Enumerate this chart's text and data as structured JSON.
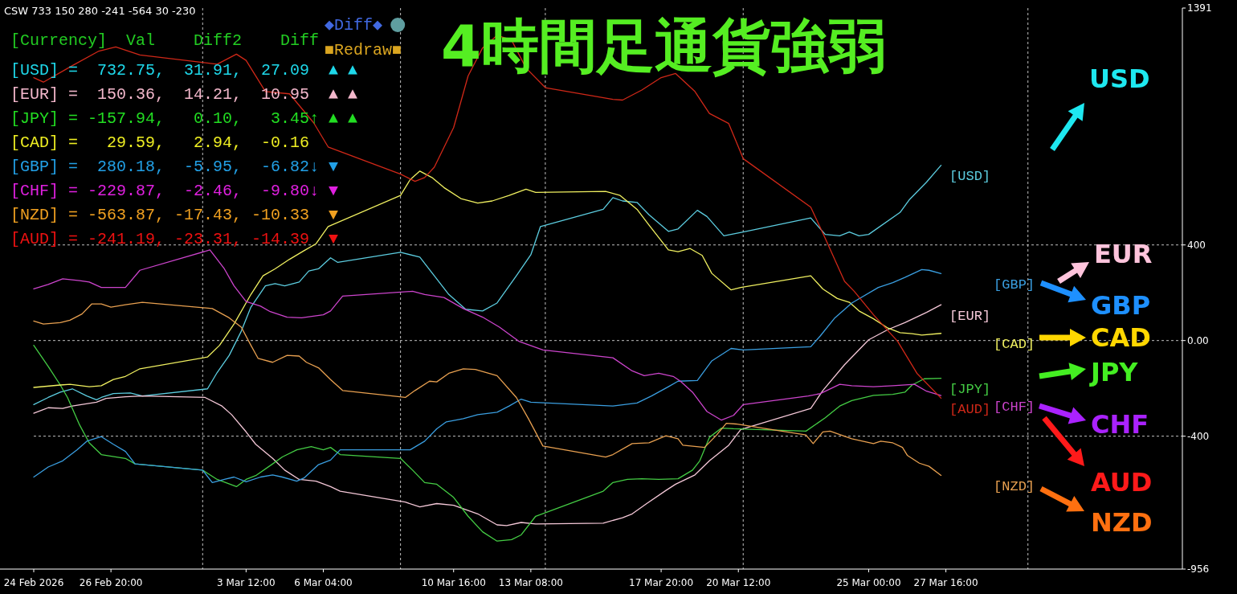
{
  "chart_data": {
    "type": "line",
    "title": "4時間足通貨強弱",
    "xlim": [
      "2026-02-24T04:00",
      "2026-04-04T20:00"
    ],
    "xticks": [
      {
        "value": "2026-02-24T04:00",
        "label": "24 Feb 2026"
      },
      {
        "value": "2026-02-26T20:00",
        "label": "26 Feb 20:00"
      },
      {
        "value": "2026-03-03T12:00",
        "label": "3 Mar 12:00"
      },
      {
        "value": "2026-03-06T04:00",
        "label": "6 Mar 04:00"
      },
      {
        "value": "2026-03-10T16:00",
        "label": "10 Mar 16:00"
      },
      {
        "value": "2026-03-13T08:00",
        "label": "13 Mar 08:00"
      },
      {
        "value": "2026-03-17T20:00",
        "label": "17 Mar 20:00"
      },
      {
        "value": "2026-03-20T12:00",
        "label": "20 Mar 12:00"
      },
      {
        "value": "2026-03-25T00:00",
        "label": "25 Mar 00:00"
      },
      {
        "value": "2026-03-27T16:00",
        "label": "27 Mar 16:00"
      }
    ],
    "ylim": [
      -956,
      1391
    ],
    "yticks": [
      -956,
      -400,
      {
        "value": 0,
        "label": "0.00"
      },
      400,
      1391
    ],
    "grid": "y",
    "ref_lines": [
      {
        "axis": "x",
        "value": "2026-03-02T00:00",
        "color": "#c0c0c0",
        "line_style": "dashed"
      },
      {
        "axis": "x",
        "value": "2026-03-08T20:00",
        "color": "#c0c0c0",
        "line_style": "dashed"
      },
      {
        "axis": "x",
        "value": "2026-03-13T20:00",
        "color": "#c0c0c0",
        "line_style": "dashed"
      },
      {
        "axis": "x",
        "value": "2026-03-20T16:00",
        "color": "#c0c0c0",
        "line_style": "dashed"
      },
      {
        "axis": "x",
        "value": "2026-03-30T12:00",
        "color": "#c0c0c0",
        "line_style": "dashed"
      }
    ],
    "series": [
      {
        "name": "[USD]",
        "color": "#5ccde0",
        "x": [
          "2026-02-24T04:00",
          "2026-02-24T16:00",
          "2026-02-25T02:00",
          "2026-02-25T12:00",
          "2026-02-26T00:00",
          "2026-02-26T08:00",
          "2026-02-26T12:00",
          "2026-02-26T22:00",
          "2026-02-27T12:00",
          "2026-02-27T22:00",
          "2026-03-02T04:00",
          "2026-03-02T12:00",
          "2026-03-02T22:00",
          "2026-03-03T08:00",
          "2026-03-03T16:00",
          "2026-03-04T04:00",
          "2026-03-04T12:00",
          "2026-03-04T20:00",
          "2026-03-05T08:00",
          "2026-03-05T16:00",
          "2026-03-06T00:00",
          "2026-03-06T10:00",
          "2026-03-06T16:00",
          "2026-03-08T20:00",
          "2026-03-09T12:00",
          "2026-03-10T00:00",
          "2026-03-10T12:00",
          "2026-03-11T02:00",
          "2026-03-11T16:00",
          "2026-03-12T04:00",
          "2026-03-12T20:00",
          "2026-03-13T08:00",
          "2026-03-13T16:00",
          "2026-03-15T20:00",
          "2026-03-16T04:00",
          "2026-03-16T12:00",
          "2026-03-17T00:00",
          "2026-03-17T10:00",
          "2026-03-18T02:00",
          "2026-03-18T10:00",
          "2026-03-19T02:00",
          "2026-03-19T10:00",
          "2026-03-20T00:00",
          "2026-03-20T16:00",
          "2026-03-23T00:00",
          "2026-03-23T12:00",
          "2026-03-24T00:00",
          "2026-03-24T08:00",
          "2026-03-24T16:00",
          "2026-03-25T00:00",
          "2026-03-26T02:00",
          "2026-03-26T10:00",
          "2026-03-27T00:00",
          "2026-03-27T12:00"
        ],
        "values": [
          -268,
          -238,
          -216,
          -202,
          -232,
          -248,
          -238,
          -222,
          -219,
          -232,
          -202,
          -134,
          -62,
          39,
          140,
          229,
          238,
          229,
          245,
          291,
          300,
          346,
          327,
          369,
          349,
          271,
          193,
          131,
          124,
          157,
          271,
          359,
          477,
          549,
          598,
          584,
          578,
          526,
          457,
          467,
          545,
          519,
          438,
          454,
          513,
          444,
          438,
          454,
          438,
          444,
          536,
          591,
          663,
          733
        ]
      },
      {
        "name": "[EUR]",
        "color": "#f5c8d8",
        "x": [
          "2026-02-24T04:00",
          "2026-02-24T16:00",
          "2026-02-25T04:00",
          "2026-02-25T12:00",
          "2026-02-26T08:00",
          "2026-02-26T16:00",
          "2026-02-27T08:00",
          "2026-02-27T22:00",
          "2026-03-02T02:00",
          "2026-03-02T16:00",
          "2026-03-03T00:00",
          "2026-03-03T12:00",
          "2026-03-03T20:00",
          "2026-03-04T10:00",
          "2026-03-04T20:00",
          "2026-03-05T08:00",
          "2026-03-05T22:00",
          "2026-03-06T10:00",
          "2026-03-06T18:00",
          "2026-03-09T00:00",
          "2026-03-09T12:00",
          "2026-03-10T02:00",
          "2026-03-10T16:00",
          "2026-03-11T12:00",
          "2026-03-12T04:00",
          "2026-03-12T12:00",
          "2026-03-13T00:00",
          "2026-03-13T12:00",
          "2026-03-15T20:00",
          "2026-03-16T12:00",
          "2026-03-16T20:00",
          "2026-03-17T08:00",
          "2026-03-18T00:00",
          "2026-03-18T08:00",
          "2026-03-19T00:00",
          "2026-03-19T12:00",
          "2026-03-20T04:00",
          "2026-03-20T14:00",
          "2026-03-23T00:00",
          "2026-03-23T10:00",
          "2026-03-24T04:00",
          "2026-03-25T00:00",
          "2026-03-25T16:00",
          "2026-03-26T06:00",
          "2026-03-27T00:00",
          "2026-03-27T12:00"
        ],
        "values": [
          -304,
          -281,
          -284,
          -274,
          -258,
          -242,
          -235,
          -232,
          -238,
          -274,
          -310,
          -382,
          -434,
          -493,
          -542,
          -581,
          -588,
          -611,
          -630,
          -676,
          -696,
          -682,
          -689,
          -725,
          -771,
          -774,
          -761,
          -767,
          -764,
          -741,
          -725,
          -682,
          -627,
          -601,
          -562,
          -503,
          -438,
          -372,
          -284,
          -209,
          -101,
          3,
          46,
          75,
          118,
          150
        ]
      },
      {
        "name": "[JPY]",
        "color": "#44cc44",
        "x": [
          "2026-02-24T04:00",
          "2026-02-24T16:00",
          "2026-02-25T02:00",
          "2026-02-25T08:00",
          "2026-02-25T18:00",
          "2026-02-26T02:00",
          "2026-02-26T12:00",
          "2026-02-27T08:00",
          "2026-02-27T16:00",
          "2026-03-02T00:00",
          "2026-03-02T12:00",
          "2026-03-03T04:00",
          "2026-03-03T12:00",
          "2026-03-03T20:00",
          "2026-03-04T10:00",
          "2026-03-04T18:00",
          "2026-03-05T06:00",
          "2026-03-05T18:00",
          "2026-03-06T04:00",
          "2026-03-06T10:00",
          "2026-03-06T18:00",
          "2026-03-08T20:00",
          "2026-03-09T06:00",
          "2026-03-09T16:00",
          "2026-03-10T02:00",
          "2026-03-10T16:00",
          "2026-03-11T04:00",
          "2026-03-11T16:00",
          "2026-03-12T04:00",
          "2026-03-12T16:00",
          "2026-03-13T00:00",
          "2026-03-13T12:00",
          "2026-03-15T20:00",
          "2026-03-16T04:00",
          "2026-03-16T16:00",
          "2026-03-17T04:00",
          "2026-03-17T18:00",
          "2026-03-18T10:00",
          "2026-03-18T22:00",
          "2026-03-19T04:00",
          "2026-03-19T12:00",
          "2026-03-19T22:00",
          "2026-03-20T08:00",
          "2026-03-22T20:00",
          "2026-03-23T12:00",
          "2026-03-24T00:00",
          "2026-03-24T10:00",
          "2026-03-25T04:00",
          "2026-03-25T20:00",
          "2026-03-26T06:00",
          "2026-03-26T12:00",
          "2026-03-26T22:00",
          "2026-03-27T12:00"
        ],
        "values": [
          -20,
          -108,
          -186,
          -238,
          -353,
          -428,
          -477,
          -493,
          -516,
          -542,
          -581,
          -611,
          -581,
          -565,
          -516,
          -487,
          -457,
          -444,
          -457,
          -447,
          -477,
          -493,
          -542,
          -594,
          -601,
          -656,
          -735,
          -800,
          -839,
          -833,
          -813,
          -735,
          -630,
          -594,
          -581,
          -578,
          -581,
          -578,
          -542,
          -503,
          -405,
          -366,
          -369,
          -379,
          -323,
          -274,
          -251,
          -229,
          -225,
          -216,
          -186,
          -160,
          -158
        ]
      },
      {
        "name": "[CAD]",
        "color": "#f0f060",
        "x": [
          "2026-02-24T04:00",
          "2026-02-25T02:00",
          "2026-02-25T10:00",
          "2026-02-26T02:00",
          "2026-02-26T12:00",
          "2026-02-26T22:00",
          "2026-02-27T08:00",
          "2026-02-27T20:00",
          "2026-03-02T04:00",
          "2026-03-02T14:00",
          "2026-03-03T02:00",
          "2026-03-03T16:00",
          "2026-03-04T02:00",
          "2026-03-04T12:00",
          "2026-03-05T00:00",
          "2026-03-05T12:00",
          "2026-03-05T22:00",
          "2026-03-06T08:00",
          "2026-03-08T20:00",
          "2026-03-09T04:00",
          "2026-03-09T12:00",
          "2026-03-09T22:00",
          "2026-03-10T08:00",
          "2026-03-10T22:00",
          "2026-03-11T12:00",
          "2026-03-12T00:00",
          "2026-03-12T14:00",
          "2026-03-13T04:00",
          "2026-03-13T12:00",
          "2026-03-15T22:00",
          "2026-03-16T10:00",
          "2026-03-17T00:00",
          "2026-03-17T10:00",
          "2026-03-18T02:00",
          "2026-03-18T10:00",
          "2026-03-18T20:00",
          "2026-03-19T06:00",
          "2026-03-19T14:00",
          "2026-03-20T06:00",
          "2026-03-20T14:00",
          "2026-03-23T00:00",
          "2026-03-23T10:00",
          "2026-03-23T22:00",
          "2026-03-24T08:00",
          "2026-03-24T16:00",
          "2026-03-25T04:00",
          "2026-03-25T16:00",
          "2026-03-26T02:00",
          "2026-03-26T12:00",
          "2026-03-26T20:00",
          "2026-03-27T12:00"
        ],
        "values": [
          -196,
          -186,
          -183,
          -193,
          -189,
          -163,
          -150,
          -118,
          -69,
          -20,
          69,
          193,
          271,
          300,
          340,
          376,
          405,
          477,
          607,
          673,
          709,
          682,
          640,
          594,
          575,
          584,
          607,
          633,
          620,
          624,
          607,
          549,
          483,
          379,
          372,
          385,
          356,
          281,
          212,
          222,
          271,
          216,
          176,
          160,
          124,
          91,
          52,
          33,
          29,
          23,
          30
        ]
      },
      {
        "name": "[GBP]",
        "color": "#3a9ee0",
        "x": [
          "2026-02-24T04:00",
          "2026-02-24T16:00",
          "2026-02-25T04:00",
          "2026-02-25T16:00",
          "2026-02-26T00:00",
          "2026-02-26T12:00",
          "2026-02-26T22:00",
          "2026-02-27T08:00",
          "2026-02-27T16:00",
          "2026-03-02T00:00",
          "2026-03-02T08:00",
          "2026-03-02T18:00",
          "2026-03-03T02:00",
          "2026-03-03T12:00",
          "2026-03-04T00:00",
          "2026-03-04T10:00",
          "2026-03-04T18:00",
          "2026-03-05T06:00",
          "2026-03-05T12:00",
          "2026-03-06T00:00",
          "2026-03-06T10:00",
          "2026-03-06T18:00",
          "2026-03-09T04:00",
          "2026-03-09T16:00",
          "2026-03-10T02:00",
          "2026-03-10T10:00",
          "2026-03-11T00:00",
          "2026-03-11T12:00",
          "2026-03-12T04:00",
          "2026-03-12T14:00",
          "2026-03-13T00:00",
          "2026-03-13T08:00",
          "2026-03-16T04:00",
          "2026-03-17T00:00",
          "2026-03-17T12:00",
          "2026-03-18T02:00",
          "2026-03-18T10:00",
          "2026-03-19T02:00",
          "2026-03-19T14:00",
          "2026-03-20T06:00",
          "2026-03-20T16:00",
          "2026-03-23T00:00",
          "2026-03-23T08:00",
          "2026-03-23T20:00",
          "2026-03-24T10:00",
          "2026-03-25T08:00",
          "2026-03-25T20:00",
          "2026-03-26T06:00",
          "2026-03-26T20:00",
          "2026-03-27T02:00",
          "2026-03-27T12:00"
        ],
        "values": [
          -571,
          -529,
          -503,
          -457,
          -421,
          -402,
          -434,
          -464,
          -516,
          -542,
          -594,
          -581,
          -571,
          -591,
          -571,
          -562,
          -571,
          -588,
          -575,
          -519,
          -500,
          -457,
          -457,
          -421,
          -369,
          -340,
          -327,
          -310,
          -300,
          -274,
          -245,
          -258,
          -274,
          -261,
          -232,
          -193,
          -170,
          -167,
          -85,
          -33,
          -39,
          -26,
          20,
          95,
          157,
          222,
          242,
          264,
          297,
          294,
          280
        ]
      },
      {
        "name": "[CHF]",
        "color": "#cc44cc",
        "x": [
          "2026-02-24T04:00",
          "2026-02-24T16:00",
          "2026-02-25T04:00",
          "2026-02-25T18:00",
          "2026-02-26T02:00",
          "2026-02-26T12:00",
          "2026-02-27T08:00",
          "2026-02-27T20:00",
          "2026-03-02T06:00",
          "2026-03-02T18:00",
          "2026-03-03T02:00",
          "2026-03-03T12:00",
          "2026-03-04T00:00",
          "2026-03-04T08:00",
          "2026-03-04T22:00",
          "2026-03-05T10:00",
          "2026-03-06T04:00",
          "2026-03-06T10:00",
          "2026-03-06T20:00",
          "2026-03-09T06:00",
          "2026-03-09T16:00",
          "2026-03-10T08:00",
          "2026-03-11T00:00",
          "2026-03-11T16:00",
          "2026-03-12T06:00",
          "2026-03-12T22:00",
          "2026-03-13T18:00",
          "2026-03-16T04:00",
          "2026-03-16T20:00",
          "2026-03-17T06:00",
          "2026-03-17T18:00",
          "2026-03-18T06:00",
          "2026-03-18T12:00",
          "2026-03-18T22:00",
          "2026-03-19T10:00",
          "2026-03-19T22:00",
          "2026-03-20T08:00",
          "2026-03-20T16:00",
          "2026-03-22T22:00",
          "2026-03-23T08:00",
          "2026-03-24T00:00",
          "2026-03-24T10:00",
          "2026-03-25T04:00",
          "2026-03-25T20:00",
          "2026-03-26T14:00",
          "2026-03-27T00:00",
          "2026-03-27T12:00"
        ],
        "values": [
          216,
          235,
          258,
          251,
          245,
          222,
          222,
          294,
          379,
          300,
          229,
          163,
          144,
          121,
          98,
          95,
          108,
          124,
          186,
          206,
          193,
          180,
          134,
          98,
          56,
          -3,
          -39,
          -72,
          -127,
          -147,
          -137,
          -150,
          -170,
          -216,
          -297,
          -333,
          -313,
          -268,
          -232,
          -222,
          -183,
          -189,
          -193,
          -189,
          -183,
          -212,
          -230
        ]
      },
      {
        "name": "[NZD]",
        "color": "#e8a050",
        "x": [
          "2026-02-24T04:00",
          "2026-02-24T12:00",
          "2026-02-25T02:00",
          "2026-02-25T10:00",
          "2026-02-25T20:00",
          "2026-02-26T04:00",
          "2026-02-26T12:00",
          "2026-02-26T20:00",
          "2026-02-27T08:00",
          "2026-02-27T22:00",
          "2026-03-02T08:00",
          "2026-03-02T22:00",
          "2026-03-03T08:00",
          "2026-03-03T16:00",
          "2026-03-03T22:00",
          "2026-03-04T10:00",
          "2026-03-04T22:00",
          "2026-03-05T08:00",
          "2026-03-05T14:00",
          "2026-03-06T00:00",
          "2026-03-06T10:00",
          "2026-03-06T20:00",
          "2026-03-09T00:00",
          "2026-03-09T08:00",
          "2026-03-09T20:00",
          "2026-03-10T02:00",
          "2026-03-10T12:00",
          "2026-03-11T00:00",
          "2026-03-11T10:00",
          "2026-03-12T04:00",
          "2026-03-12T20:00",
          "2026-03-13T06:00",
          "2026-03-13T18:00",
          "2026-03-15T22:00",
          "2026-03-16T04:00",
          "2026-03-16T20:00",
          "2026-03-17T10:00",
          "2026-03-18T00:00",
          "2026-03-18T10:00",
          "2026-03-18T14:00",
          "2026-03-19T08:00",
          "2026-03-19T18:00",
          "2026-03-20T02:00",
          "2026-03-20T10:00",
          "2026-03-22T20:00",
          "2026-03-23T02:00",
          "2026-03-23T10:00",
          "2026-03-23T16:00",
          "2026-03-24T10:00",
          "2026-03-25T04:00",
          "2026-03-25T10:00",
          "2026-03-25T20:00",
          "2026-03-26T04:00",
          "2026-03-26T08:00",
          "2026-03-26T18:00",
          "2026-03-27T02:00",
          "2026-03-27T12:00"
        ],
        "values": [
          82,
          69,
          75,
          85,
          111,
          153,
          153,
          140,
          150,
          160,
          134,
          95,
          56,
          -20,
          -75,
          -91,
          -62,
          -65,
          -91,
          -114,
          -163,
          -209,
          -238,
          -209,
          -170,
          -173,
          -137,
          -118,
          -121,
          -147,
          -238,
          -327,
          -441,
          -487,
          -477,
          -431,
          -428,
          -398,
          -411,
          -438,
          -447,
          -395,
          -346,
          -349,
          -395,
          -431,
          -382,
          -379,
          -411,
          -431,
          -421,
          -428,
          -447,
          -480,
          -513,
          -526,
          -564
        ]
      },
      {
        "name": "[AUD]",
        "color": "#d02818",
        "x": [
          "2026-02-24T04:00",
          "2026-02-24T12:00",
          "2026-02-25T12:00",
          "2026-02-26T10:00",
          "2026-02-27T00:00",
          "2026-02-27T20:00",
          "2026-03-02T12:00",
          "2026-03-03T04:00",
          "2026-03-03T12:00",
          "2026-03-04T04:00",
          "2026-03-05T00:00",
          "2026-03-05T20:00",
          "2026-03-06T08:00",
          "2026-03-08T20:00",
          "2026-03-09T08:00",
          "2026-03-09T16:00",
          "2026-03-10T00:00",
          "2026-03-10T16:00",
          "2026-03-11T04:00",
          "2026-03-11T16:00",
          "2026-03-12T04:00",
          "2026-03-12T16:00",
          "2026-03-13T04:00",
          "2026-03-13T20:00",
          "2026-03-16T04:00",
          "2026-03-16T12:00",
          "2026-03-17T04:00",
          "2026-03-17T20:00",
          "2026-03-18T08:00",
          "2026-03-19T00:00",
          "2026-03-19T12:00",
          "2026-03-20T04:00",
          "2026-03-20T16:00",
          "2026-03-23T00:00",
          "2026-03-23T12:00",
          "2026-03-24T04:00",
          "2026-03-24T12:00",
          "2026-03-25T04:00",
          "2026-03-26T00:00",
          "2026-03-26T16:00",
          "2026-03-27T12:00"
        ],
        "values": [
          1100,
          1081,
          1150,
          1211,
          1228,
          1195,
          1156,
          1198,
          1172,
          1042,
          1032,
          911,
          810,
          696,
          666,
          682,
          725,
          891,
          1107,
          1224,
          1277,
          1257,
          1140,
          1058,
          1009,
          1006,
          1048,
          1100,
          1117,
          1042,
          950,
          908,
          761,
          558,
          428,
          248,
          206,
          108,
          -3,
          -137,
          -241
        ]
      }
    ],
    "annotations": [
      "CSW 733 150 280 -241 -564 30 -230",
      "◆Diff◆",
      "■Redraw■",
      "[Currency]  Val    Diff2    Diff",
      "[USD] =  732.75,  31.91,  27.09  ▲ ▲",
      "[EUR] =  150.36,  14.21,  10.95  ▲ ▲",
      "[JPY] = -157.94,   0.10,   3.45↑ ▲ ▲",
      "[CAD] =   29.59,   2.94,  -0.16",
      "[GBP] =  280.18,  -5.95,  -6.82↓ ▼",
      "[CHF] = -229.87,  -2.46,  -9.80↓ ▼",
      "[NZD] = -563.87, -17.43, -10.33  ▼",
      "[AUD] = -241.19, -23.31, -14.39  ▼",
      "USD",
      "EUR",
      "GBP",
      "CAD",
      "JPY",
      "CHF",
      "AUD",
      "NZD"
    ]
  }
}
